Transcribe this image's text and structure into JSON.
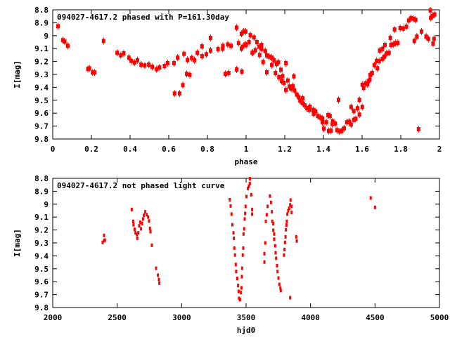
{
  "chart_data": [
    {
      "type": "scatter",
      "title": "094027-4617.2 phased with P=161.30day",
      "xlabel": "phase",
      "ylabel": "I[mag]",
      "xlim": [
        0,
        2
      ],
      "ylim": [
        8.8,
        9.8
      ],
      "y_inverted": true,
      "grid": false,
      "xticks": [
        "0",
        "0.2",
        "0.4",
        "0.6",
        "0.8",
        "1",
        "1.2",
        "1.4",
        "1.6",
        "1.8",
        "2"
      ],
      "yticks": [
        "8.8",
        "8.9",
        "9",
        "9.1",
        "9.2",
        "9.3",
        "9.4",
        "9.5",
        "9.6",
        "9.7",
        "9.8"
      ],
      "color": "#ff0000",
      "points": [
        [
          0.027,
          8.927
        ],
        [
          0.052,
          9.035
        ],
        [
          0.062,
          9.046
        ],
        [
          0.078,
          9.079
        ],
        [
          0.182,
          9.258
        ],
        [
          0.19,
          9.253
        ],
        [
          0.206,
          9.285
        ],
        [
          0.216,
          9.285
        ],
        [
          0.263,
          9.041
        ],
        [
          0.333,
          9.133
        ],
        [
          0.352,
          9.152
        ],
        [
          0.367,
          9.137
        ],
        [
          0.394,
          9.17
        ],
        [
          0.406,
          9.195
        ],
        [
          0.423,
          9.209
        ],
        [
          0.438,
          9.19
        ],
        [
          0.457,
          9.224
        ],
        [
          0.476,
          9.231
        ],
        [
          0.497,
          9.224
        ],
        [
          0.515,
          9.242
        ],
        [
          0.537,
          9.26
        ],
        [
          0.552,
          9.246
        ],
        [
          0.578,
          9.235
        ],
        [
          0.594,
          9.213
        ],
        [
          0.627,
          9.213
        ],
        [
          0.63,
          9.448
        ],
        [
          0.656,
          9.448
        ],
        [
          0.646,
          9.17
        ],
        [
          0.673,
          9.383
        ],
        [
          0.679,
          9.141
        ],
        [
          0.693,
          9.296
        ],
        [
          0.709,
          9.304
        ],
        [
          0.697,
          9.188
        ],
        [
          0.719,
          9.173
        ],
        [
          0.733,
          9.19
        ],
        [
          0.748,
          9.133
        ],
        [
          0.772,
          9.083
        ],
        [
          0.772,
          9.159
        ],
        [
          0.794,
          9.144
        ],
        [
          0.816,
          9.017
        ],
        [
          0.816,
          9.115
        ],
        [
          0.855,
          9.104
        ],
        [
          0.879,
          9.1
        ],
        [
          0.88,
          9.079
        ],
        [
          0.893,
          9.296
        ],
        [
          0.91,
          9.289
        ],
        [
          0.905,
          9.068
        ],
        [
          0.922,
          9.079
        ],
        [
          0.951,
          8.938
        ],
        [
          0.951,
          9.262
        ],
        [
          0.961,
          9.057
        ],
        [
          0.976,
          8.985
        ],
        [
          0.978,
          9.278
        ],
        [
          0.976,
          9.1
        ],
        [
          0.988,
          8.967
        ],
        [
          0.998,
          8.968
        ],
        [
          0.995,
          9.068
        ],
        [
          0.982,
          9.086
        ],
        [
          1.0,
          9.072
        ],
        [
          1.015,
          9.05
        ],
        [
          1.022,
          8.996
        ],
        [
          1.032,
          9.133
        ],
        [
          1.041,
          9.014
        ],
        [
          1.034,
          9.132
        ],
        [
          1.048,
          9.113
        ],
        [
          1.056,
          9.05
        ],
        [
          1.068,
          9.086
        ],
        [
          1.07,
          9.15
        ],
        [
          1.08,
          9.072
        ],
        [
          1.08,
          9.103
        ],
        [
          1.088,
          9.204
        ],
        [
          1.099,
          9.119
        ],
        [
          1.107,
          9.152
        ],
        [
          1.107,
          9.284
        ],
        [
          1.119,
          9.162
        ],
        [
          1.133,
          9.17
        ],
        [
          1.133,
          9.228
        ],
        [
          1.145,
          9.191
        ],
        [
          1.152,
          9.289
        ],
        [
          1.158,
          9.22
        ],
        [
          1.167,
          9.206
        ],
        [
          1.17,
          9.322
        ],
        [
          1.18,
          9.264
        ],
        [
          1.189,
          9.313
        ],
        [
          1.184,
          9.351
        ],
        [
          1.206,
          9.213
        ],
        [
          1.196,
          9.365
        ],
        [
          1.206,
          9.42
        ],
        [
          1.216,
          9.347
        ],
        [
          1.224,
          9.394
        ],
        [
          1.233,
          9.409
        ],
        [
          1.242,
          9.391
        ],
        [
          1.247,
          9.315
        ],
        [
          1.25,
          9.423
        ],
        [
          1.262,
          9.456
        ],
        [
          1.273,
          9.478
        ],
        [
          1.279,
          9.503
        ],
        [
          1.293,
          9.485
        ],
        [
          1.291,
          9.521
        ],
        [
          1.303,
          9.539
        ],
        [
          1.315,
          9.561
        ],
        [
          1.33,
          9.55
        ],
        [
          1.327,
          9.575
        ],
        [
          1.347,
          9.575
        ],
        [
          1.349,
          9.604
        ],
        [
          1.359,
          9.586
        ],
        [
          1.371,
          9.622
        ],
        [
          1.383,
          9.633
        ],
        [
          1.395,
          9.641
        ],
        [
          1.395,
          9.67
        ],
        [
          1.402,
          9.72
        ],
        [
          1.415,
          9.67
        ],
        [
          1.424,
          9.615
        ],
        [
          1.434,
          9.622
        ],
        [
          1.427,
          9.738
        ],
        [
          1.439,
          9.735
        ],
        [
          1.448,
          9.663
        ],
        [
          1.446,
          9.684
        ],
        [
          1.461,
          9.68
        ],
        [
          1.47,
          9.731
        ],
        [
          1.478,
          9.497
        ],
        [
          1.483,
          9.742
        ],
        [
          1.495,
          9.735
        ],
        [
          1.507,
          9.717
        ],
        [
          1.521,
          9.67
        ],
        [
          1.533,
          9.666
        ],
        [
          1.543,
          9.688
        ],
        [
          1.543,
          9.552
        ],
        [
          1.557,
          9.584
        ],
        [
          1.557,
          9.652
        ],
        [
          1.567,
          9.644
        ],
        [
          1.576,
          9.562
        ],
        [
          1.586,
          9.611
        ],
        [
          1.586,
          9.497
        ],
        [
          1.601,
          9.552
        ],
        [
          1.601,
          9.38
        ],
        [
          1.608,
          9.405
        ],
        [
          1.618,
          9.369
        ],
        [
          1.628,
          9.376
        ],
        [
          1.633,
          9.351
        ],
        [
          1.64,
          9.34
        ],
        [
          1.642,
          9.304
        ],
        [
          1.652,
          9.289
        ],
        [
          1.663,
          9.228
        ],
        [
          1.675,
          9.195
        ],
        [
          1.679,
          9.253
        ],
        [
          1.688,
          9.198
        ],
        [
          1.691,
          9.115
        ],
        [
          1.705,
          9.18
        ],
        [
          1.705,
          9.103
        ],
        [
          1.715,
          9.162
        ],
        [
          1.718,
          9.072
        ],
        [
          1.727,
          9.137
        ],
        [
          1.739,
          9.133
        ],
        [
          1.746,
          9.017
        ],
        [
          1.749,
          9.072
        ],
        [
          1.761,
          9.068
        ],
        [
          1.768,
          8.952
        ],
        [
          1.773,
          9.057
        ],
        [
          1.785,
          9.057
        ],
        [
          1.797,
          8.941
        ],
        [
          1.812,
          8.945
        ],
        [
          1.829,
          8.93
        ],
        [
          1.841,
          8.883
        ],
        [
          1.853,
          8.865
        ],
        [
          1.865,
          8.869
        ],
        [
          1.877,
          8.878
        ],
        [
          1.87,
          9.041
        ],
        [
          1.883,
          9.007
        ],
        [
          1.892,
          9.724
        ],
        [
          1.907,
          8.968
        ],
        [
          1.931,
          9.007
        ],
        [
          1.943,
          9.025
        ],
        [
          1.953,
          8.805
        ],
        [
          1.955,
          8.862
        ],
        [
          1.965,
          8.847
        ],
        [
          1.975,
          8.836
        ],
        [
          1.967,
          9.061
        ],
        [
          1.972,
          9.025
        ]
      ]
    },
    {
      "type": "scatter",
      "title": "094027-4617.2 not phased light curve",
      "xlabel": "hjd0",
      "ylabel": "I[mag]",
      "xlim": [
        2000,
        5000
      ],
      "ylim": [
        8.8,
        9.8
      ],
      "y_inverted": true,
      "grid": false,
      "xticks": [
        "2000",
        "2500",
        "3000",
        "3500",
        "4000",
        "4500",
        "5000"
      ],
      "yticks": [
        "8.8",
        "8.9",
        "9",
        "9.1",
        "9.2",
        "9.3",
        "9.4",
        "9.5",
        "9.6",
        "9.7",
        "9.8"
      ],
      "color": "#ff0000",
      "points": [
        [
          2387,
          9.296
        ],
        [
          2398,
          9.282
        ],
        [
          2405,
          9.278
        ],
        [
          2398,
          9.242
        ],
        [
          2613,
          9.041
        ],
        [
          2624,
          9.133
        ],
        [
          2627,
          9.159
        ],
        [
          2635,
          9.195
        ],
        [
          2642,
          9.222
        ],
        [
          2653,
          9.235
        ],
        [
          2656,
          9.264
        ],
        [
          2664,
          9.222
        ],
        [
          2671,
          9.168
        ],
        [
          2678,
          9.14
        ],
        [
          2685,
          9.191
        ],
        [
          2693,
          9.15
        ],
        [
          2700,
          9.115
        ],
        [
          2707,
          9.086
        ],
        [
          2718,
          9.059
        ],
        [
          2729,
          9.082
        ],
        [
          2740,
          9.1
        ],
        [
          2747,
          9.13
        ],
        [
          2754,
          9.188
        ],
        [
          2758,
          9.213
        ],
        [
          2769,
          9.318
        ],
        [
          2802,
          9.496
        ],
        [
          2816,
          9.55
        ],
        [
          2824,
          9.583
        ],
        [
          2827,
          9.612
        ],
        [
          3373,
          8.966
        ],
        [
          3380,
          9.014
        ],
        [
          3387,
          9.077
        ],
        [
          3394,
          9.159
        ],
        [
          3402,
          9.222
        ],
        [
          3405,
          9.264
        ],
        [
          3409,
          9.34
        ],
        [
          3414,
          9.394
        ],
        [
          3420,
          9.467
        ],
        [
          3423,
          9.521
        ],
        [
          3431,
          9.575
        ],
        [
          3438,
          9.63
        ],
        [
          3442,
          9.675
        ],
        [
          3445,
          9.729
        ],
        [
          3453,
          9.738
        ],
        [
          3460,
          9.684
        ],
        [
          3464,
          9.648
        ],
        [
          3467,
          9.561
        ],
        [
          3469,
          9.496
        ],
        [
          3474,
          9.394
        ],
        [
          3478,
          9.34
        ],
        [
          3480,
          9.231
        ],
        [
          3485,
          9.191
        ],
        [
          3489,
          9.115
        ],
        [
          3493,
          9.072
        ],
        [
          3496,
          9.017
        ],
        [
          3503,
          8.941
        ],
        [
          3514,
          8.878
        ],
        [
          3522,
          8.86
        ],
        [
          3529,
          8.84
        ],
        [
          3529,
          8.803
        ],
        [
          3540,
          8.927
        ],
        [
          3547,
          9.041
        ],
        [
          3547,
          9.077
        ],
        [
          3642,
          9.448
        ],
        [
          3642,
          9.383
        ],
        [
          3649,
          9.3
        ],
        [
          3653,
          9.133
        ],
        [
          3660,
          9.082
        ],
        [
          3667,
          9.017
        ],
        [
          3685,
          8.937
        ],
        [
          3693,
          8.986
        ],
        [
          3700,
          9.059
        ],
        [
          3703,
          9.133
        ],
        [
          3711,
          9.151
        ],
        [
          3711,
          9.202
        ],
        [
          3718,
          9.231
        ],
        [
          3718,
          9.271
        ],
        [
          3725,
          9.322
        ],
        [
          3729,
          9.376
        ],
        [
          3733,
          9.419
        ],
        [
          3740,
          9.476
        ],
        [
          3744,
          9.521
        ],
        [
          3751,
          9.572
        ],
        [
          3758,
          9.621
        ],
        [
          3766,
          9.651
        ],
        [
          3769,
          9.669
        ],
        [
          3794,
          9.394
        ],
        [
          3798,
          9.351
        ],
        [
          3802,
          9.296
        ],
        [
          3806,
          9.253
        ],
        [
          3809,
          9.198
        ],
        [
          3813,
          9.162
        ],
        [
          3816,
          9.133
        ],
        [
          3820,
          9.077
        ],
        [
          3827,
          9.05
        ],
        [
          3834,
          9.032
        ],
        [
          3842,
          9.005
        ],
        [
          3845,
          8.968
        ],
        [
          3853,
          9.017
        ],
        [
          3853,
          9.064
        ],
        [
          3842,
          9.724
        ],
        [
          3889,
          9.253
        ],
        [
          3893,
          9.285
        ],
        [
          4467,
          8.952
        ],
        [
          4500,
          9.025
        ]
      ]
    }
  ]
}
